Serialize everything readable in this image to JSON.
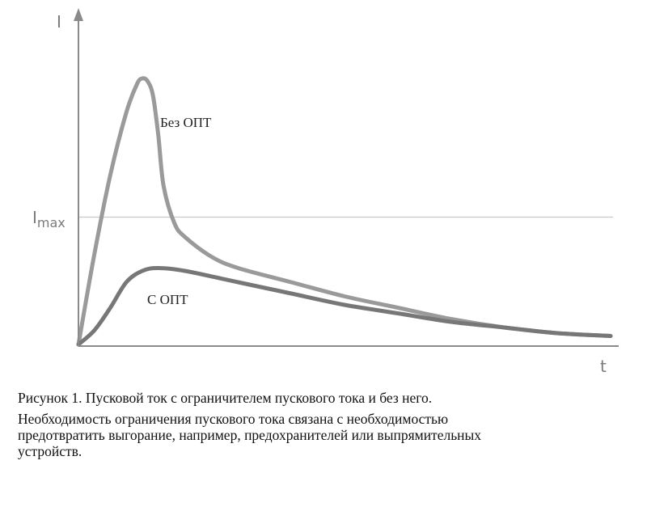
{
  "chart_data": {
    "type": "line",
    "title": "",
    "xlabel": "t",
    "ylabel": "I",
    "reference_line": {
      "label": "Imax",
      "label_main": "I",
      "label_sub": "max",
      "y": 0.45
    },
    "xlim": [
      0,
      1
    ],
    "ylim": [
      0,
      1
    ],
    "grid": false,
    "series": [
      {
        "name": "Без ОПТ",
        "color": "#9a9a9a",
        "x": [
          0,
          0.03,
          0.06,
          0.09,
          0.11,
          0.12,
          0.13,
          0.14,
          0.15,
          0.16,
          0.18,
          0.2,
          0.25,
          0.3,
          0.4,
          0.5,
          0.6,
          0.7,
          0.8,
          0.9,
          1.0
        ],
        "values": [
          0,
          0.32,
          0.6,
          0.82,
          0.92,
          0.94,
          0.93,
          0.88,
          0.74,
          0.56,
          0.43,
          0.38,
          0.31,
          0.27,
          0.22,
          0.17,
          0.13,
          0.09,
          0.06,
          0.04,
          0.03
        ]
      },
      {
        "name": "С ОПТ",
        "color": "#777777",
        "x": [
          0,
          0.03,
          0.06,
          0.09,
          0.12,
          0.15,
          0.2,
          0.3,
          0.4,
          0.5,
          0.6,
          0.7,
          0.8,
          0.9,
          1.0
        ],
        "values": [
          0,
          0.05,
          0.13,
          0.22,
          0.26,
          0.27,
          0.26,
          0.22,
          0.18,
          0.14,
          0.11,
          0.08,
          0.06,
          0.04,
          0.03
        ]
      }
    ]
  },
  "caption": {
    "title": "Рисунок 1. Пусковой ток с ограничителем пускового тока и без него.",
    "lines": [
      "Необходимость ограничения пускового тока связана с необходимостью",
      "предотвратить выгорание, например, предохранителей или выпрямительных",
      "устройств."
    ]
  }
}
